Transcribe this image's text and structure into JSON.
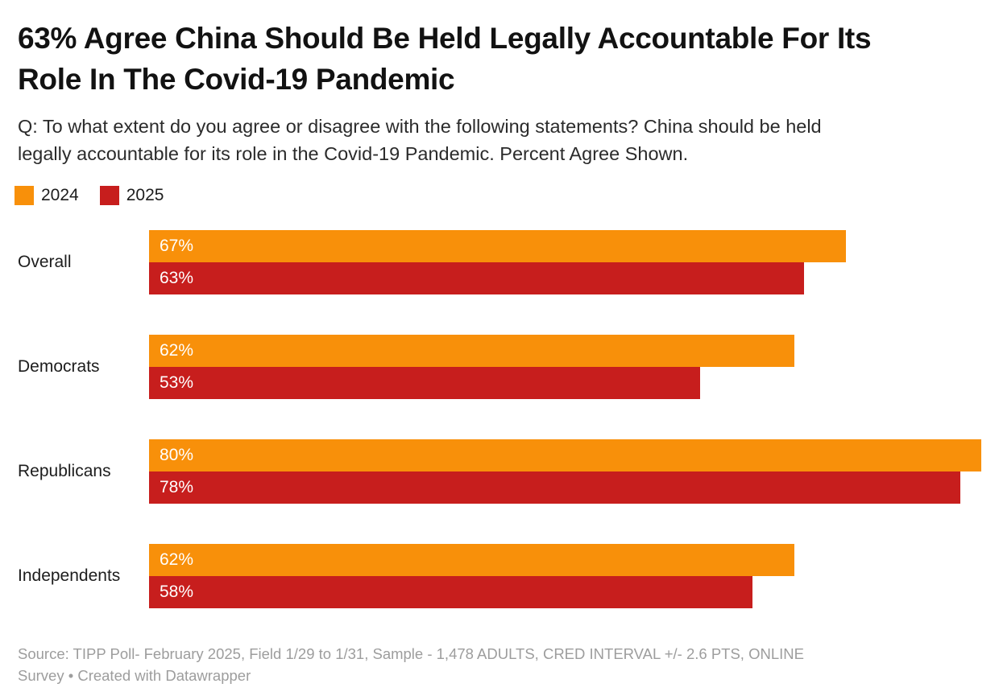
{
  "header": {
    "title": "63% Agree China Should Be Held Legally Accountable For Its Role In The Covid-19 Pandemic",
    "title_line1": "63% Agree China Should Be Held Legally Accountable For Its",
    "title_line2": "Role In The Covid-19 Pandemic",
    "subtitle": "Q: To what extent do you agree or disagree with the following statements? China should be held legally accountable for its role in the Covid-19 Pandemic. Percent Agree Shown.",
    "subtitle_line1": "Q: To what extent do you agree or disagree with the following statements? China should be held",
    "subtitle_line2": "legally accountable for its role in the Covid-19 Pandemic. Percent Agree Shown."
  },
  "legend": {
    "items": [
      {
        "label": "2024",
        "color": "#F8900A"
      },
      {
        "label": "2025",
        "color": "#C71E1D"
      }
    ]
  },
  "chart_data": {
    "type": "bar",
    "orientation": "horizontal",
    "title": "63% Agree China Should Be Held Legally Accountable For Its Role In The Covid-19 Pandemic",
    "categories": [
      "Overall",
      "Democrats",
      "Republicans",
      "Independents"
    ],
    "series": [
      {
        "name": "2024",
        "color": "#F8900A",
        "values": [
          67,
          62,
          80,
          62
        ]
      },
      {
        "name": "2025",
        "color": "#C71E1D",
        "values": [
          63,
          53,
          78,
          58
        ]
      }
    ],
    "value_suffix": "%",
    "axis_max": 80,
    "grid": false,
    "legend_position": "top-left",
    "value_labels": "inside-start"
  },
  "footer": {
    "source_line1": "Source: TIPP Poll- February 2025, Field 1/29 to 1/31, Sample - 1,478 ADULTS, CRED INTERVAL +/- 2.6 PTS, ONLINE",
    "source_line2": "Survey • Created with Datawrapper",
    "source_full": "Source: TIPP Poll- February 2025, Field 1/29 to 1/31, Sample - 1,478 ADULTS, CRED INTERVAL +/- 2.6 PTS, ONLINE Survey • Created with Datawrapper"
  }
}
